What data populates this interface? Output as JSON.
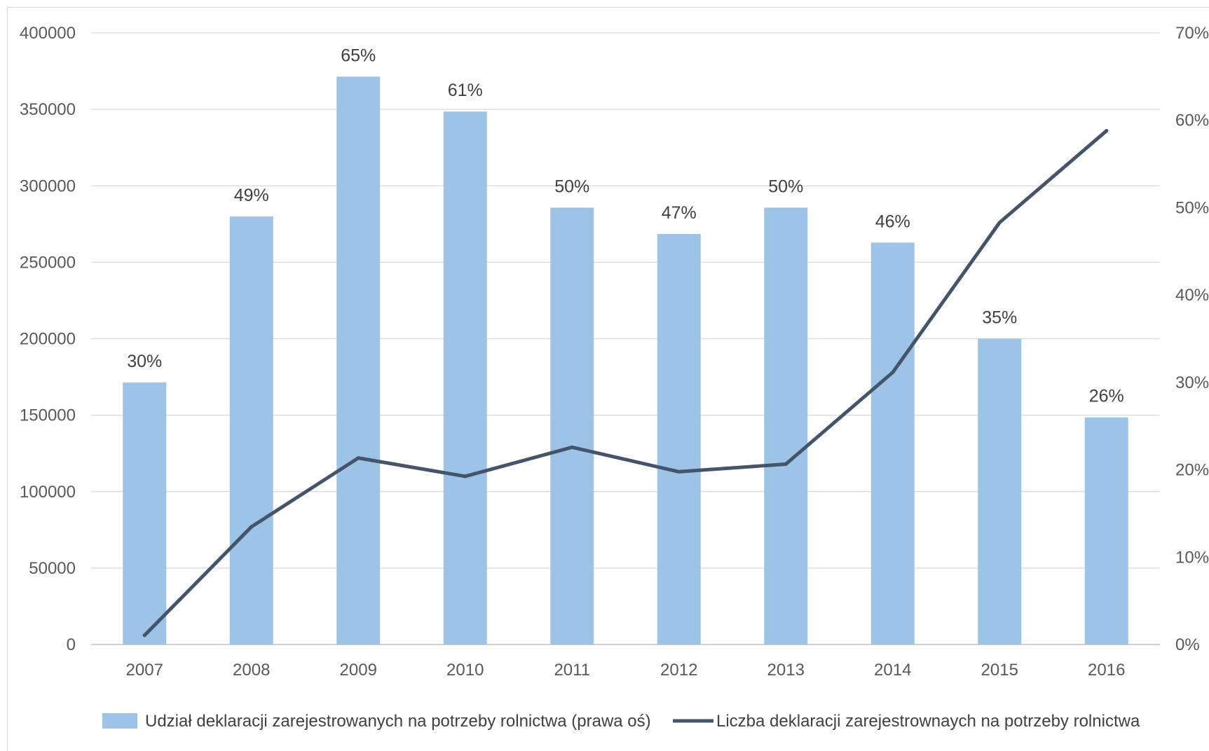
{
  "chart_data": {
    "type": "bar+line",
    "categories": [
      "2007",
      "2008",
      "2009",
      "2010",
      "2011",
      "2012",
      "2013",
      "2014",
      "2015",
      "2016"
    ],
    "series": [
      {
        "name": "Udział deklaracji zarejestrowanych na potrzeby rolnictwa (prawa oś)",
        "type": "bar",
        "axis": "right",
        "values": [
          30,
          49,
          65,
          61,
          50,
          47,
          50,
          46,
          35,
          26
        ],
        "labels": [
          "30%",
          "49%",
          "65%",
          "61%",
          "50%",
          "47%",
          "50%",
          "46%",
          "35%",
          "26%"
        ],
        "color": "#9dc3e6"
      },
      {
        "name": "Liczba deklaracji zarejestrownaych na potrzeby rolnictwa",
        "type": "line",
        "axis": "left",
        "values": [
          6000,
          77000,
          122000,
          110000,
          129000,
          113000,
          118000,
          178000,
          276000,
          336000
        ],
        "color": "#44546a"
      }
    ],
    "y_left": {
      "ylim": [
        0,
        400000
      ],
      "ticks": [
        "0",
        "50000",
        "100000",
        "150000",
        "200000",
        "250000",
        "300000",
        "350000",
        "400000"
      ]
    },
    "y_right": {
      "ylim": [
        0,
        70
      ],
      "ticks": [
        "0%",
        "10%",
        "20%",
        "30%",
        "40%",
        "50%",
        "60%",
        "70%"
      ]
    },
    "grid": true,
    "legend": "bottom"
  }
}
